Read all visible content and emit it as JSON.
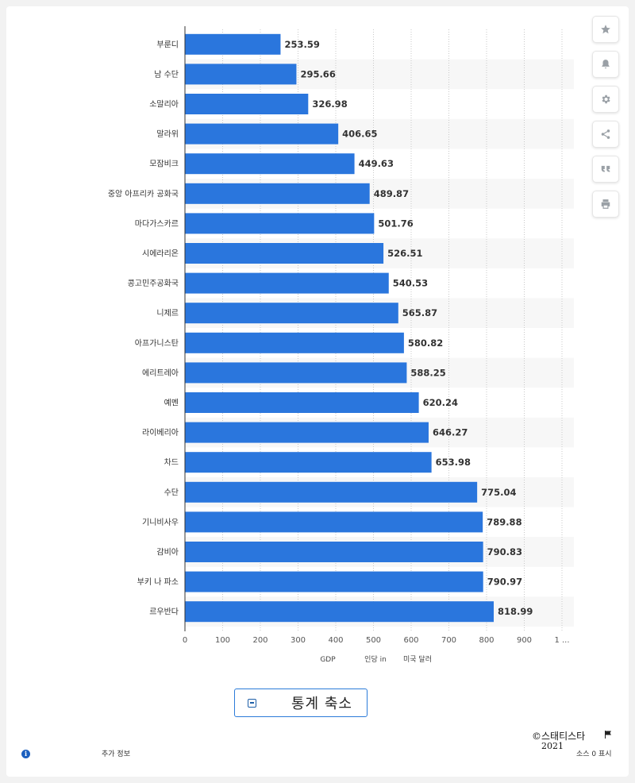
{
  "chart_data": {
    "type": "bar",
    "orientation": "horizontal",
    "categories": [
      "부룬디",
      "남 수단",
      "소말리아",
      "말라위",
      "모잠비크",
      "중앙 아프리카 공화국",
      "마다가스카르",
      "시에라리온",
      "콩고민주공화국",
      "니제르",
      "아프가니스탄",
      "에리트레아",
      "예멘",
      "라이베리아",
      "차드",
      "수단",
      "기니비사우",
      "감비아",
      "부키 나 파소",
      "르우반다"
    ],
    "values": [
      253.59,
      295.66,
      326.98,
      406.65,
      449.63,
      489.87,
      501.76,
      526.51,
      540.53,
      565.87,
      580.82,
      588.25,
      620.24,
      646.27,
      653.98,
      775.04,
      789.88,
      790.83,
      790.97,
      818.99
    ],
    "value_labels": [
      "253.59",
      "295.66",
      "326.98",
      "406.65",
      "449.63",
      "489.87",
      "501.76",
      "526.51",
      "540.53",
      "565.87",
      "580.82",
      "588.25",
      "620.24",
      "646.27",
      "653.98",
      "775.04",
      "789.88",
      "790.83",
      "790.97",
      "818.99"
    ],
    "xlim": [
      0,
      1000
    ],
    "xticks": [
      "0",
      "100",
      "200",
      "300",
      "400",
      "500",
      "600",
      "700",
      "800",
      "900",
      "1 ..."
    ],
    "xlabel_parts": [
      "GDP",
      "인당 in",
      "미국 달러"
    ],
    "grid": "vertical dotted",
    "bar_color": "#2a76dd",
    "alt_row_color": "#f7f7f7"
  },
  "side_buttons": [
    {
      "icon": "star-icon",
      "name": "favorite-button"
    },
    {
      "icon": "bell-icon",
      "name": "notification-button"
    },
    {
      "icon": "gear-icon",
      "name": "settings-button"
    },
    {
      "icon": "share-icon",
      "name": "share-button"
    },
    {
      "icon": "quote-icon",
      "name": "cite-button"
    },
    {
      "icon": "print-icon",
      "name": "print-button"
    }
  ],
  "collapse_button": {
    "label": "통계 축소"
  },
  "footer": {
    "more_info": "추가 정보",
    "copyright": "©스태티스타",
    "copyright_year": "2021",
    "show_source": "소스 0 표시"
  }
}
